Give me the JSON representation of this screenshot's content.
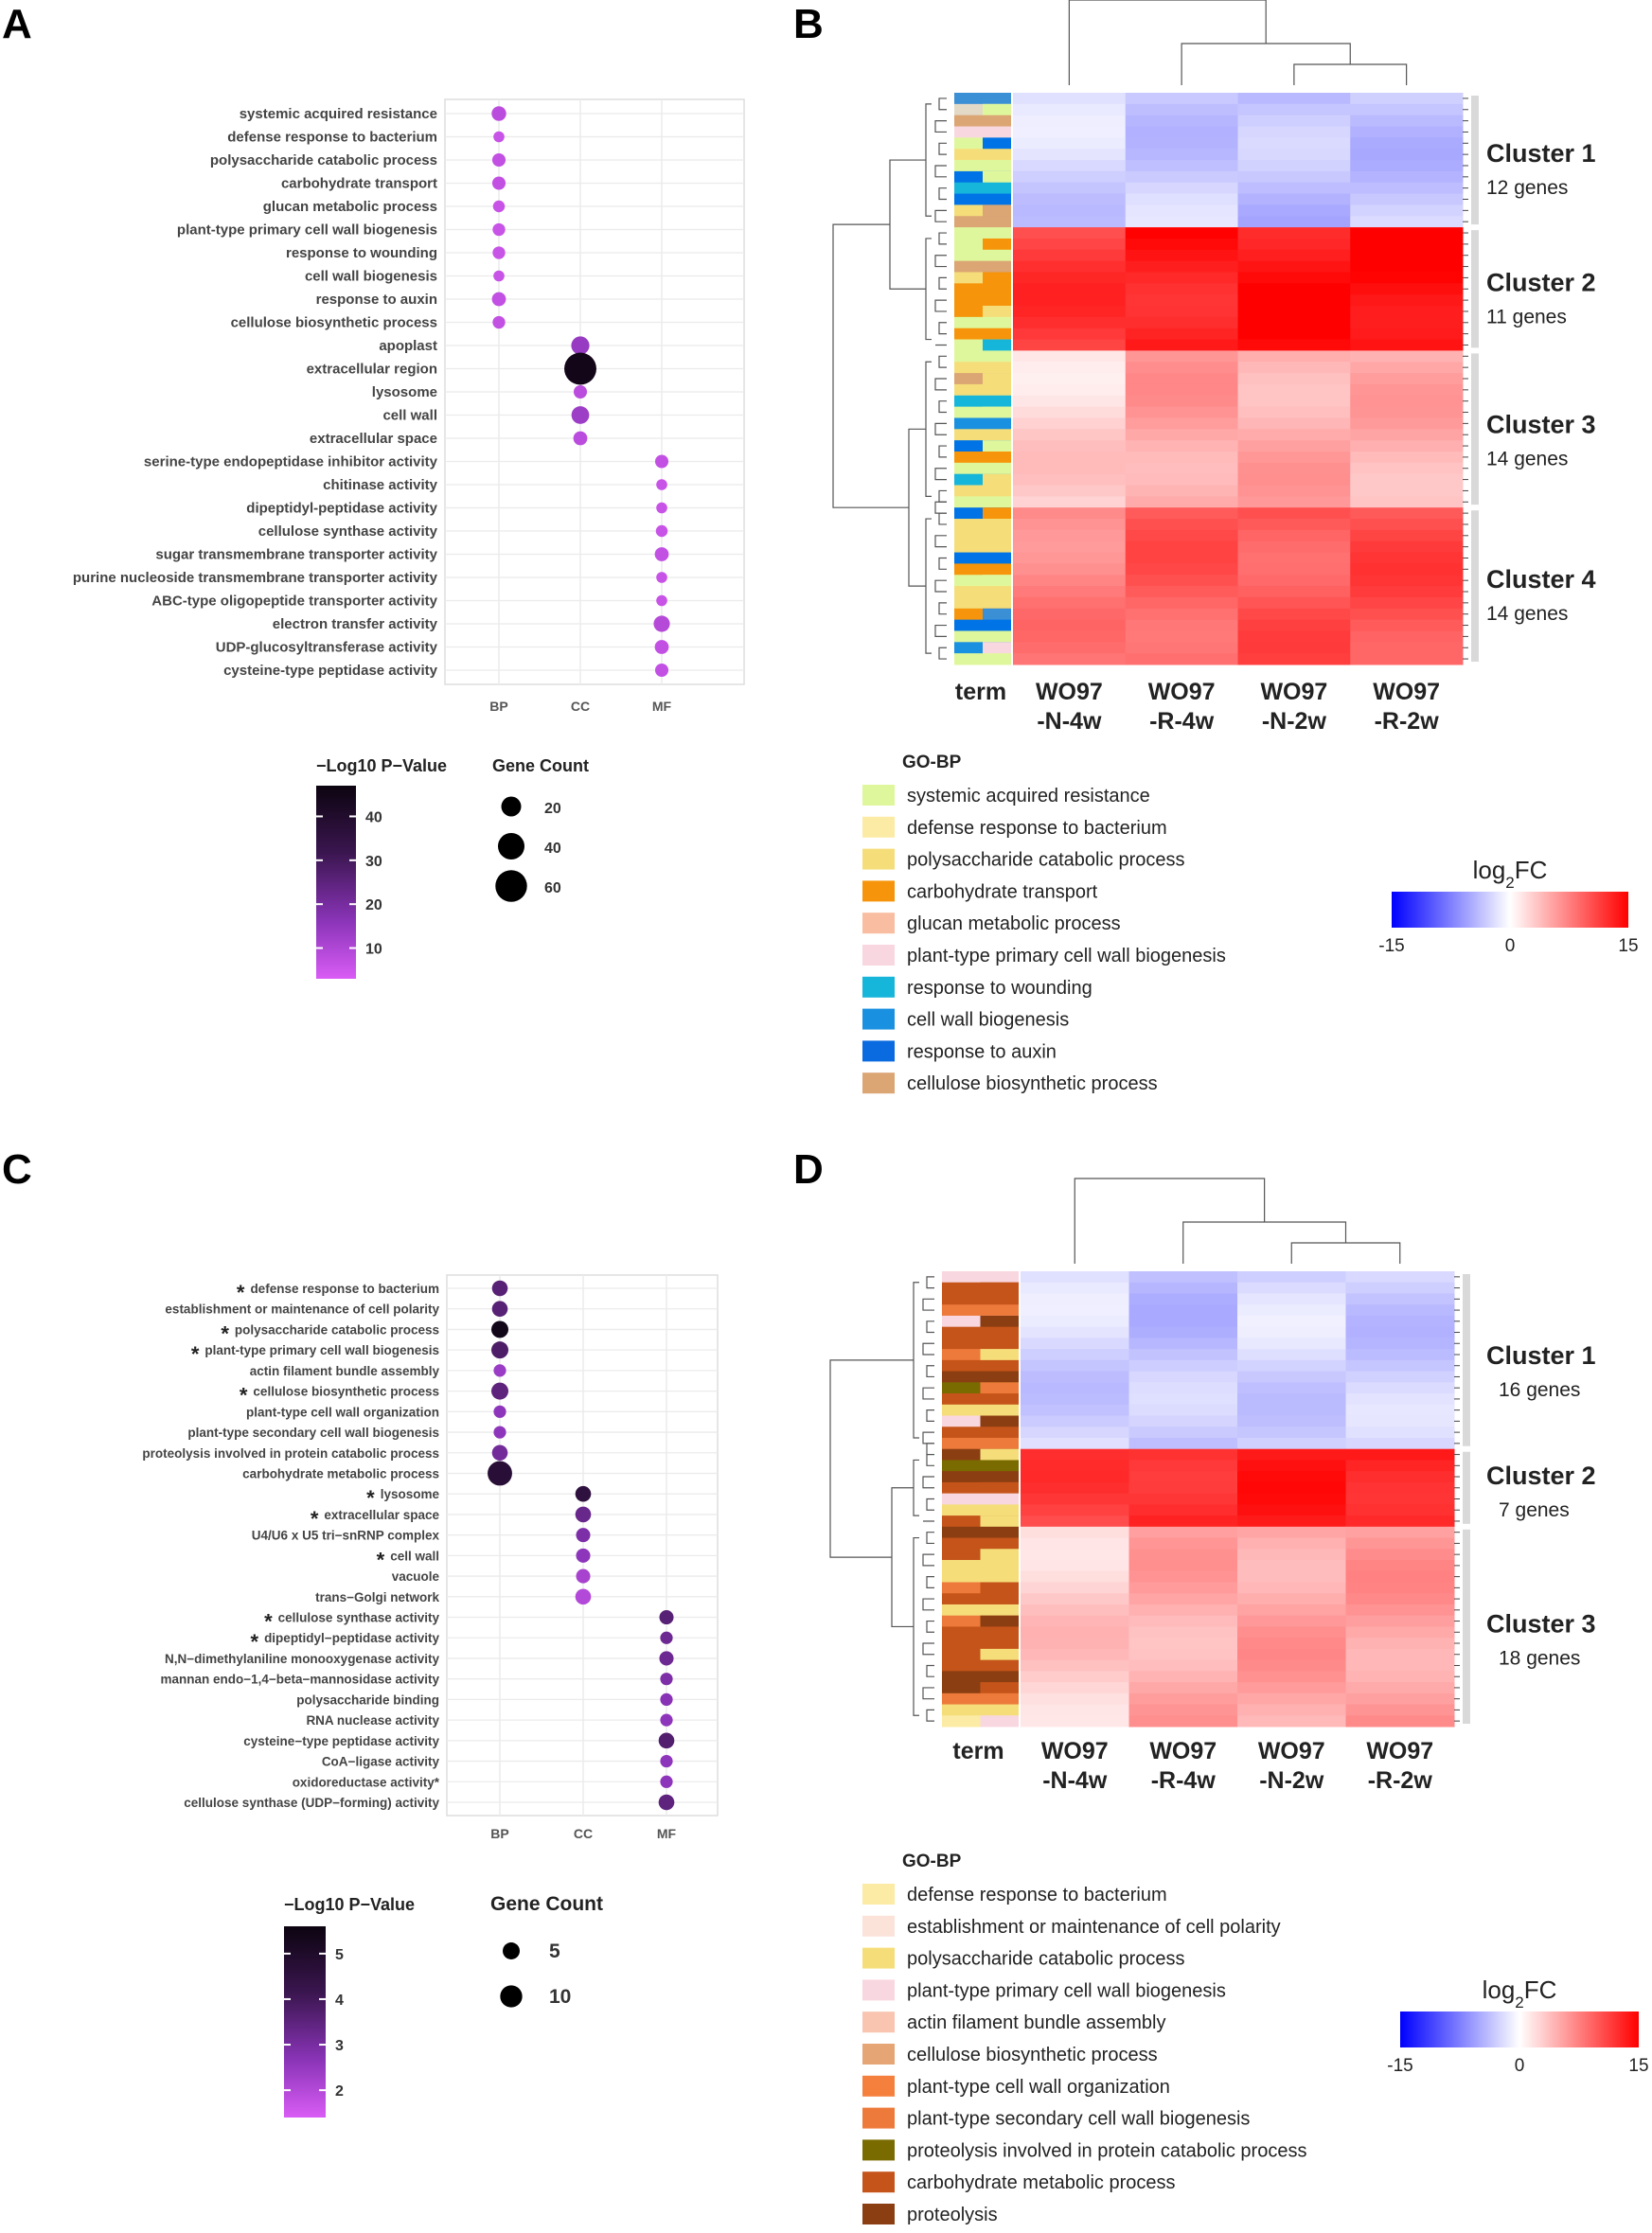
{
  "panels": {
    "A": "A",
    "B": "B",
    "C": "C",
    "D": "D"
  },
  "chart_data": [
    {
      "id": "A",
      "type": "scatter",
      "subtype": "dot-plot",
      "categories_x": [
        "BP",
        "CC",
        "MF"
      ],
      "terms": [
        {
          "label": "systemic acquired resistance",
          "cat": "BP",
          "count": 9,
          "logp": 8
        },
        {
          "label": "defense response to bacterium",
          "cat": "BP",
          "count": 4,
          "logp": 6
        },
        {
          "label": "polysaccharide catabolic process",
          "cat": "BP",
          "count": 7,
          "logp": 7
        },
        {
          "label": "carbohydrate transport",
          "cat": "BP",
          "count": 7,
          "logp": 7
        },
        {
          "label": "glucan metabolic process",
          "cat": "BP",
          "count": 5,
          "logp": 6
        },
        {
          "label": "plant-type primary cell wall biogenesis",
          "cat": "BP",
          "count": 6,
          "logp": 6
        },
        {
          "label": "response to wounding",
          "cat": "BP",
          "count": 6,
          "logp": 6
        },
        {
          "label": "cell wall biogenesis",
          "cat": "BP",
          "count": 4,
          "logp": 6
        },
        {
          "label": "response to auxin",
          "cat": "BP",
          "count": 8,
          "logp": 7
        },
        {
          "label": "cellulose biosynthetic process",
          "cat": "BP",
          "count": 6,
          "logp": 7
        },
        {
          "label": "apoplast",
          "cat": "CC",
          "count": 16,
          "logp": 14
        },
        {
          "label": "extracellular region",
          "cat": "CC",
          "count": 62,
          "logp": 45
        },
        {
          "label": "lysosome",
          "cat": "CC",
          "count": 7,
          "logp": 8
        },
        {
          "label": "cell wall",
          "cat": "CC",
          "count": 15,
          "logp": 13
        },
        {
          "label": "extracellular space",
          "cat": "CC",
          "count": 8,
          "logp": 8
        },
        {
          "label": "serine-type endopeptidase inhibitor activity",
          "cat": "MF",
          "count": 7,
          "logp": 7
        },
        {
          "label": "chitinase activity",
          "cat": "MF",
          "count": 4,
          "logp": 6
        },
        {
          "label": "dipeptidyl-peptidase activity",
          "cat": "MF",
          "count": 4,
          "logp": 6
        },
        {
          "label": "cellulose synthase activity",
          "cat": "MF",
          "count": 5,
          "logp": 6
        },
        {
          "label": "sugar transmembrane transporter activity",
          "cat": "MF",
          "count": 8,
          "logp": 7
        },
        {
          "label": "purine nucleoside transmembrane transporter activity",
          "cat": "MF",
          "count": 4,
          "logp": 6
        },
        {
          "label": "ABC-type oligopeptide transporter activity",
          "cat": "MF",
          "count": 4,
          "logp": 6
        },
        {
          "label": "electron transfer activity",
          "cat": "MF",
          "count": 12,
          "logp": 9
        },
        {
          "label": "UDP-glucosyltransferase activity",
          "cat": "MF",
          "count": 8,
          "logp": 7
        },
        {
          "label": "cysteine-type peptidase activity",
          "cat": "MF",
          "count": 7,
          "logp": 7
        }
      ],
      "color_legend": {
        "title": "−Log10 P−Value",
        "ticks": [
          40,
          30,
          20,
          10
        ],
        "range": [
          3,
          47
        ]
      },
      "size_legend": {
        "title": "Gene Count",
        "values": [
          20,
          40,
          60
        ]
      }
    },
    {
      "id": "C",
      "type": "scatter",
      "subtype": "dot-plot",
      "categories_x": [
        "BP",
        "CC",
        "MF"
      ],
      "terms": [
        {
          "label": "defense response to bacterium",
          "cat": "BP",
          "count": 4,
          "logp": 3.6,
          "star": true
        },
        {
          "label": "establishment or maintenance of cell polarity",
          "cat": "BP",
          "count": 4,
          "logp": 3.6,
          "star": false
        },
        {
          "label": "polysaccharide catabolic process",
          "cat": "BP",
          "count": 5,
          "logp": 5.4,
          "star": true
        },
        {
          "label": "plant-type primary cell wall biogenesis",
          "cat": "BP",
          "count": 5,
          "logp": 3.8,
          "star": true
        },
        {
          "label": "actin filament bundle assembly",
          "cat": "BP",
          "count": 2,
          "logp": 2.4,
          "star": false
        },
        {
          "label": "cellulose biosynthetic process",
          "cat": "BP",
          "count": 5,
          "logp": 3.5,
          "star": true
        },
        {
          "label": "plant-type cell wall organization",
          "cat": "BP",
          "count": 2,
          "logp": 2.6,
          "star": false
        },
        {
          "label": "plant-type secondary cell wall biogenesis",
          "cat": "BP",
          "count": 2,
          "logp": 2.6,
          "star": false
        },
        {
          "label": "proteolysis involved in protein catabolic process",
          "cat": "BP",
          "count": 4,
          "logp": 3.1,
          "star": false
        },
        {
          "label": "carbohydrate metabolic process",
          "cat": "BP",
          "count": 13,
          "logp": 4.7,
          "star": false
        },
        {
          "label": "lysosome",
          "cat": "CC",
          "count": 4,
          "logp": 4.5,
          "star": true
        },
        {
          "label": "extracellular space",
          "cat": "CC",
          "count": 4,
          "logp": 3.3,
          "star": true
        },
        {
          "label": "U4/U6 x U5 tri−snRNP complex",
          "cat": "CC",
          "count": 3,
          "logp": 2.9,
          "star": false
        },
        {
          "label": "cell wall",
          "cat": "CC",
          "count": 3,
          "logp": 2.6,
          "star": true
        },
        {
          "label": "vacuole",
          "cat": "CC",
          "count": 3,
          "logp": 2.2,
          "star": false
        },
        {
          "label": "trans−Golgi network",
          "cat": "CC",
          "count": 4,
          "logp": 2.0,
          "star": false
        },
        {
          "label": "cellulose synthase activity",
          "cat": "MF",
          "count": 3,
          "logp": 3.6,
          "star": true
        },
        {
          "label": "dipeptidyl−peptidase activity",
          "cat": "MF",
          "count": 2,
          "logp": 3.2,
          "star": true
        },
        {
          "label": "N,N−dimethylaniline monooxygenase activity",
          "cat": "MF",
          "count": 3,
          "logp": 3.2,
          "star": false
        },
        {
          "label": "mannan endo−1,4−beta−mannosidase activity",
          "cat": "MF",
          "count": 2,
          "logp": 2.9,
          "star": false
        },
        {
          "label": "polysaccharide binding",
          "cat": "MF",
          "count": 2,
          "logp": 2.7,
          "star": false
        },
        {
          "label": "RNA nuclease activity",
          "cat": "MF",
          "count": 2,
          "logp": 2.6,
          "star": false
        },
        {
          "label": "cysteine−type peptidase activity",
          "cat": "MF",
          "count": 4,
          "logp": 3.7,
          "star": false
        },
        {
          "label": "CoA−ligase activity",
          "cat": "MF",
          "count": 2,
          "logp": 2.6,
          "star": false
        },
        {
          "label": "oxidoreductase activity*",
          "cat": "MF",
          "count": 2,
          "logp": 2.6,
          "star": false
        },
        {
          "label": "cellulose synthase (UDP−forming) activity",
          "cat": "MF",
          "count": 4,
          "logp": 3.5,
          "star": false
        }
      ],
      "color_legend": {
        "title": "−Log10 P−Value",
        "ticks": [
          5,
          4,
          3,
          2
        ],
        "range": [
          1.4,
          5.6
        ]
      },
      "size_legend": {
        "title": "Gene Count",
        "values": [
          5,
          10
        ]
      }
    },
    {
      "id": "B",
      "type": "heatmap",
      "columns": [
        {
          "l1": "WO97",
          "l2": "-N-4w"
        },
        {
          "l1": "WO97",
          "l2": "-R-4w"
        },
        {
          "l1": "WO97",
          "l2": "-N-2w"
        },
        {
          "l1": "WO97",
          "l2": "-R-2w"
        }
      ],
      "term_label": "term",
      "clusters": [
        {
          "name": "Cluster 1",
          "count": "12 genes",
          "genes": 12,
          "values": [
            -2.5,
            -3,
            -3.8,
            -3.5
          ]
        },
        {
          "name": "Cluster 2",
          "count": "11 genes",
          "genes": 11,
          "values": [
            11.5,
            13.5,
            14,
            14.8
          ]
        },
        {
          "name": "Cluster 3",
          "count": "14 genes",
          "genes": 14,
          "values": [
            2.5,
            5.5,
            5,
            4.8
          ]
        },
        {
          "name": "Cluster 4",
          "count": "14 genes",
          "genes": 14,
          "values": [
            7.5,
            9.5,
            10,
            10.5
          ]
        }
      ],
      "term_colors": [
        "#3b8fd5",
        "#e3d9c7",
        "#dba574",
        "#f9d7e0",
        "#dff79c",
        "#f5de7a",
        "#dff79c",
        "#0073e6",
        "#16b5da",
        "#0073e6",
        "#f5de7a",
        "#dba574",
        "#dff79c",
        "#dff79c",
        "#dff79c",
        "#dba574",
        "#f5de7a",
        "#f6950b",
        "#f6950b",
        "#f6950b",
        "#dff79c",
        "#f6950b",
        "#dff79c",
        "#dff79c",
        "#f5de7a",
        "#dba574",
        "#f5de7a",
        "#16b5da",
        "#dff79c",
        "#1a90e0",
        "#f5de7a",
        "#0073e6",
        "#f6950b",
        "#dff79c",
        "#16b5da",
        "#f5de7a",
        "#dff79c",
        "#0073e6",
        "#f5de7a",
        "#f5de7a",
        "#f5de7a",
        "#0073e6",
        "#f6950b",
        "#dff79c",
        "#f5de7a",
        "#f5de7a",
        "#f6950b",
        "#0073e6",
        "#dff79c",
        "#1a90e0",
        "#dff79c"
      ],
      "go_title": "GO-BP",
      "go_terms": [
        {
          "label": "systemic acquired resistance",
          "color": "#dff79c"
        },
        {
          "label": "defense response to bacterium",
          "color": "#fbeba5"
        },
        {
          "label": "polysaccharide catabolic process",
          "color": "#f5de7a"
        },
        {
          "label": "carbohydrate transport",
          "color": "#f6950b"
        },
        {
          "label": "glucan metabolic process",
          "color": "#f9bda1"
        },
        {
          "label": "plant-type primary cell wall biogenesis",
          "color": "#f9d7e0"
        },
        {
          "label": "response to wounding",
          "color": "#16b5da"
        },
        {
          "label": "cell wall biogenesis",
          "color": "#1a90e0"
        },
        {
          "label": "response to auxin",
          "color": "#0a6ae0"
        },
        {
          "label": "cellulose biosynthetic process",
          "color": "#dba574"
        }
      ],
      "fc_legend": {
        "title": "log",
        "sub": "2",
        "tail": "FC",
        "ticks": [
          "-15",
          "0",
          "15"
        ]
      }
    },
    {
      "id": "D",
      "type": "heatmap",
      "columns": [
        {
          "l1": "WO97",
          "l2": "-N-4w"
        },
        {
          "l1": "WO97",
          "l2": "-R-4w"
        },
        {
          "l1": "WO97",
          "l2": "-N-2w"
        },
        {
          "l1": "WO97",
          "l2": "-R-2w"
        }
      ],
      "term_label": "term",
      "clusters": [
        {
          "name": "Cluster 1",
          "count": "16 genes",
          "genes": 16,
          "values": [
            -2.5,
            -3.5,
            -2.5,
            -3
          ]
        },
        {
          "name": "Cluster 2",
          "count": "7 genes",
          "genes": 7,
          "values": [
            11,
            13,
            13,
            13.5
          ]
        },
        {
          "name": "Cluster 3",
          "count": "18 genes",
          "genes": 18,
          "values": [
            3,
            5,
            5.5,
            5.8
          ]
        }
      ],
      "term_colors": [
        "#f9d7e0",
        "#c5541a",
        "#c5541a",
        "#ed7a3b",
        "#f9d7e0",
        "#c5541a",
        "#c5541a",
        "#ed7a3b",
        "#c5541a",
        "#8b3e12",
        "#7a6b00",
        "#c5541a",
        "#f5de7a",
        "#f9d7e0",
        "#c5541a",
        "#ed7a3b",
        "#8b3e12",
        "#7a6b00",
        "#8b3e12",
        "#c5541a",
        "#f9d7e0",
        "#f5de7a",
        "#c5541a",
        "#8b3e12",
        "#c5541a",
        "#c5541a",
        "#f5de7a",
        "#f5de7a",
        "#ed7a3b",
        "#c5541a",
        "#f5de7a",
        "#ed7a3b",
        "#c5541a",
        "#c5541a",
        "#c5541a",
        "#c5541a",
        "#8b3e12",
        "#8b3e12",
        "#ed7a3b",
        "#f5de7a",
        "#fbeba5"
      ],
      "go_title": "GO-BP",
      "go_terms": [
        {
          "label": "defense response to bacterium",
          "color": "#fbeba5"
        },
        {
          "label": "establishment or maintenance of cell polarity",
          "color": "#fbe3da"
        },
        {
          "label": "polysaccharide catabolic process",
          "color": "#f5de7a"
        },
        {
          "label": "plant-type primary cell wall biogenesis",
          "color": "#f9d7e0"
        },
        {
          "label": "actin filament bundle assembly",
          "color": "#f9c4b0"
        },
        {
          "label": "cellulose biosynthetic process",
          "color": "#e6a575"
        },
        {
          "label": "plant-type cell wall organization",
          "color": "#f5803e"
        },
        {
          "label": "plant-type secondary cell wall biogenesis",
          "color": "#ed7a3b"
        },
        {
          "label": "proteolysis involved in protein catabolic process",
          "color": "#7a6b00"
        },
        {
          "label": "carbohydrate metabolic process",
          "color": "#c5541a"
        },
        {
          "label": "proteolysis",
          "color": "#8b3e12"
        }
      ],
      "fc_legend": {
        "title": "log",
        "sub": "2",
        "tail": "FC",
        "ticks": [
          "-15",
          "0",
          "15"
        ]
      }
    }
  ]
}
